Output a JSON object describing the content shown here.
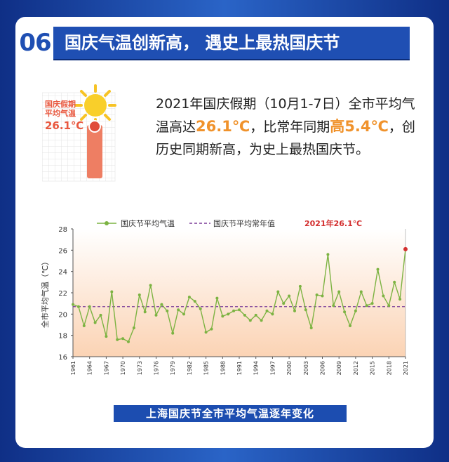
{
  "header": {
    "number": "06",
    "title": "国庆气温创新高，  遇史上最热国庆节"
  },
  "illustration": {
    "label_line1": "国庆假期",
    "label_line2": "平均气温",
    "value": "26.1℃"
  },
  "intro": {
    "part1": "2021年国庆假期（10月1-7日）全市平均气温高达",
    "hl1": "26.1℃",
    "part2": "，比常年同期",
    "hl2": "高5.4℃",
    "part3": "，创历史同期新高，为史上最热国庆节。"
  },
  "caption": "上海国庆节全市平均气温逐年变化",
  "colors": {
    "series": "#7cb342",
    "normal_line": "#7b3d99",
    "highlight": "#d32f2f",
    "accent": "#f0922b",
    "blue": "#1f4fb3"
  },
  "chart_data": {
    "type": "line",
    "ylabel": "全市平均气温（℃）",
    "xlabel": "",
    "ylim": [
      16,
      28
    ],
    "yticks": [
      16,
      18,
      20,
      22,
      24,
      26,
      28
    ],
    "xlim": [
      1961,
      2021
    ],
    "xticks": [
      1961,
      1964,
      1967,
      1970,
      1973,
      1976,
      1979,
      1982,
      1985,
      1988,
      1991,
      1994,
      1997,
      2000,
      2003,
      2006,
      2009,
      2012,
      2015,
      2018,
      2021
    ],
    "legend": [
      {
        "name": "国庆节平均气温"
      },
      {
        "name": "国庆节平均常年值"
      }
    ],
    "annotation": "2021年26.1℃",
    "normal_value": 20.7,
    "series": [
      {
        "name": "国庆节平均气温",
        "x": [
          1961,
          1962,
          1963,
          1964,
          1965,
          1966,
          1967,
          1968,
          1969,
          1970,
          1971,
          1972,
          1973,
          1974,
          1975,
          1976,
          1977,
          1978,
          1979,
          1980,
          1981,
          1982,
          1983,
          1984,
          1985,
          1986,
          1987,
          1988,
          1989,
          1990,
          1991,
          1992,
          1993,
          1994,
          1995,
          1996,
          1997,
          1998,
          1999,
          2000,
          2001,
          2002,
          2003,
          2004,
          2005,
          2006,
          2007,
          2008,
          2009,
          2010,
          2011,
          2012,
          2013,
          2014,
          2015,
          2016,
          2017,
          2018,
          2019,
          2020,
          2021
        ],
        "values": [
          20.9,
          20.7,
          18.9,
          20.7,
          19.2,
          19.9,
          17.9,
          22.1,
          17.6,
          17.7,
          17.4,
          18.7,
          21.8,
          20.2,
          22.7,
          19.9,
          20.9,
          20.3,
          18.2,
          20.4,
          20.0,
          21.6,
          21.2,
          20.5,
          18.3,
          18.6,
          21.5,
          19.8,
          20.0,
          20.3,
          20.4,
          19.9,
          19.4,
          19.9,
          19.4,
          20.3,
          20.0,
          22.1,
          21.0,
          21.7,
          20.3,
          22.6,
          20.4,
          18.7,
          21.8,
          21.7,
          25.6,
          20.8,
          22.1,
          20.2,
          18.9,
          20.3,
          22.1,
          20.8,
          21.0,
          24.2,
          21.7,
          20.8,
          23.0,
          21.4,
          26.1
        ]
      }
    ]
  }
}
